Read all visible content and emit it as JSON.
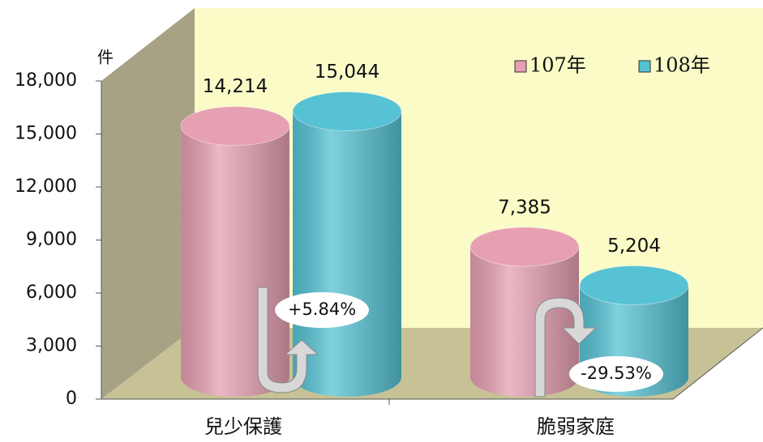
{
  "chart_data": {
    "type": "bar3d",
    "y_unit": "件",
    "categories": [
      "兒少保護",
      "脆弱家庭"
    ],
    "series": [
      {
        "name": "107年",
        "color": "#e6a0b2",
        "values": [
          14214,
          7385
        ],
        "value_labels": [
          "14,214",
          "7,385"
        ]
      },
      {
        "name": "108年",
        "color": "#56c2d4",
        "values": [
          15044,
          5204
        ],
        "value_labels": [
          "15,044",
          "5,204"
        ]
      }
    ],
    "ylim": [
      0,
      18000
    ],
    "yticks": [
      0,
      {
        "value": 3000,
        "label": "3,000"
      },
      {
        "value": 6000,
        "label": "6,000"
      },
      {
        "value": 9000,
        "label": "9,000"
      },
      {
        "value": 12000,
        "label": "12,000"
      },
      {
        "value": 15000,
        "label": "15,000"
      },
      {
        "value": 18000,
        "label": "18,000"
      }
    ],
    "legend": "upper right",
    "annotations": [
      "+5.84%",
      "-29.53%"
    ]
  }
}
